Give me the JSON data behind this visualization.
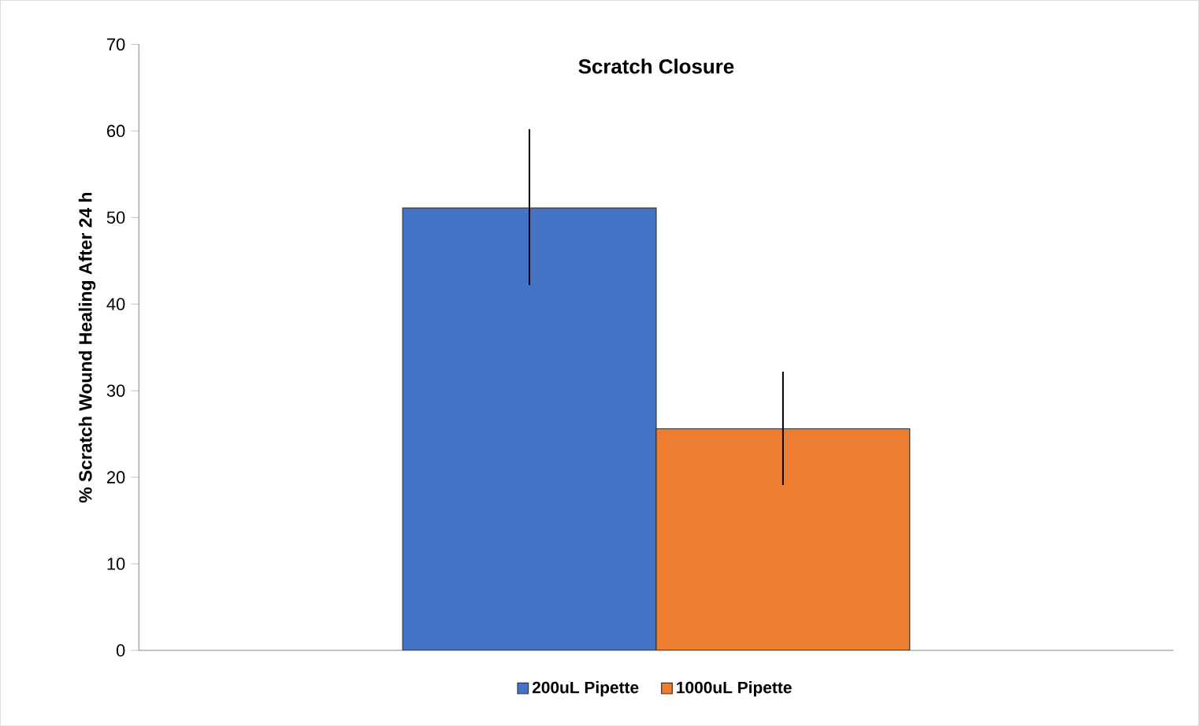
{
  "chart_data": {
    "type": "bar",
    "title": "Scratch Closure",
    "ylabel": "% Scratch Wound Healing After 24 h",
    "categories": [
      null
    ],
    "series": [
      {
        "name": "200uL Pipette",
        "color": "#4472c4",
        "values": [
          51.1
        ],
        "errors": [
          [
            42.2,
            60.2
          ]
        ]
      },
      {
        "name": "1000uL Pipette",
        "color": "#ed7d31",
        "values": [
          25.6
        ],
        "errors": [
          [
            19.1,
            32.2
          ]
        ]
      }
    ],
    "ylim": [
      0,
      70
    ],
    "yticks": [
      0,
      10,
      20,
      30,
      40,
      50,
      60,
      70
    ],
    "grid": false,
    "legend": "bottom"
  }
}
